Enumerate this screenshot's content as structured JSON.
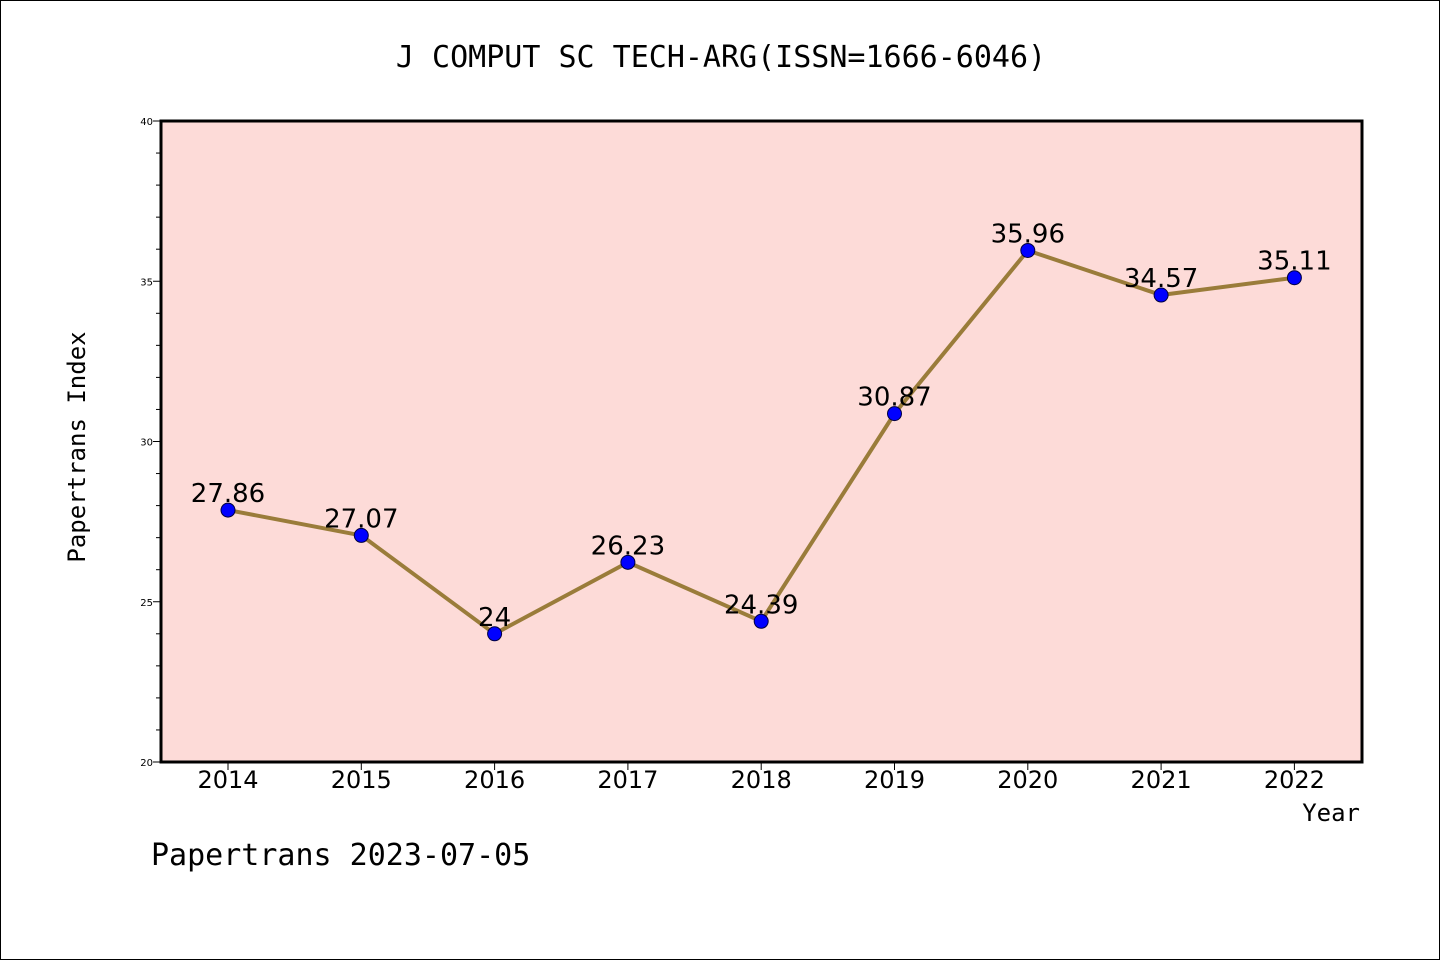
{
  "chart_data": {
    "type": "line",
    "title": "J COMPUT SC TECH-ARG(ISSN=1666-6046)",
    "xlabel": "Year",
    "ylabel": "Papertrans Index",
    "categories": [
      "2014",
      "2015",
      "2016",
      "2017",
      "2018",
      "2019",
      "2020",
      "2021",
      "2022"
    ],
    "series": [
      {
        "values": [
          27.86,
          27.07,
          24,
          26.23,
          24.39,
          30.87,
          35.96,
          34.57,
          35.11
        ],
        "labels": [
          "27.86",
          "27.07",
          "24",
          "26.23",
          "24.39",
          "30.87",
          "35.96",
          "34.57",
          "35.11"
        ]
      }
    ],
    "ylim": [
      20,
      40
    ],
    "yticks": [
      "20",
      "25",
      "30",
      "35",
      "40"
    ],
    "grid": false,
    "colors": {
      "plot_background": "#fddbd8",
      "line": "#9a7c3a",
      "marker": "#0000ff"
    }
  },
  "footer": "Papertrans 2023-07-05"
}
